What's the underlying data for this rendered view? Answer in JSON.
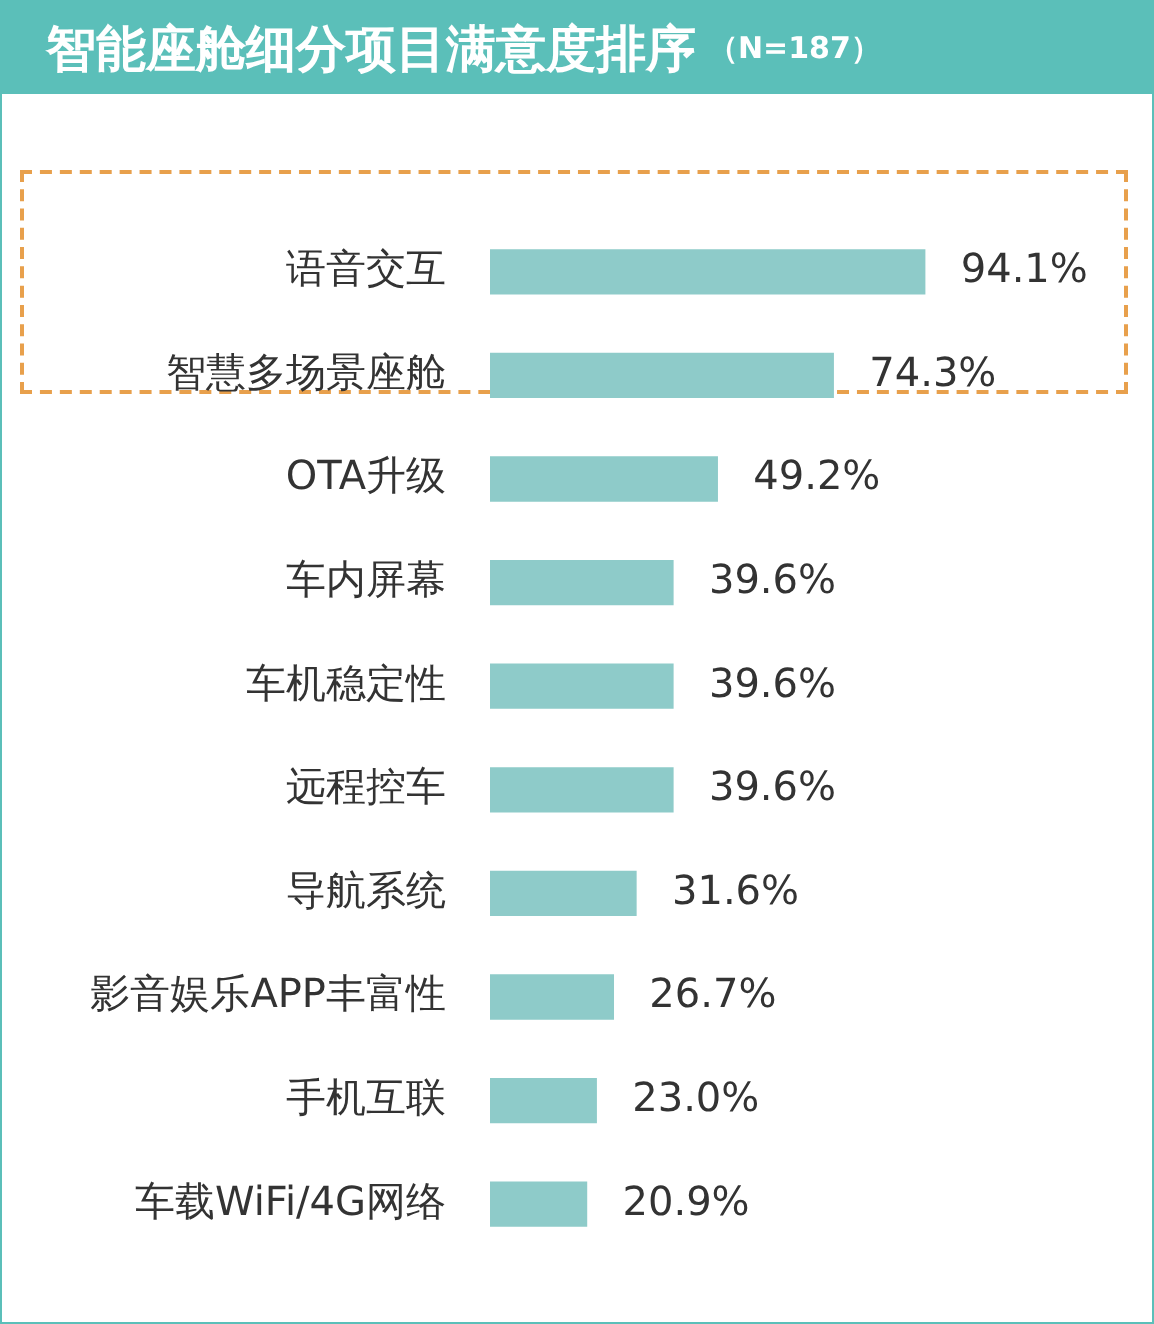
{
  "chart_data": {
    "type": "bar",
    "orientation": "horizontal",
    "title": "智能座舱细分项目满意度排序",
    "subtitle": "（N=187）",
    "categories": [
      "语音交互",
      "智慧多场景座舱",
      "OTA升级",
      "车内屏幕",
      "车机稳定性",
      "远程控车",
      "导航系统",
      "影音娱乐APP丰富性",
      "手机互联",
      "车载WiFi/4G网络"
    ],
    "values": [
      94.1,
      74.3,
      49.2,
      39.6,
      39.6,
      39.6,
      31.6,
      26.7,
      23.0,
      20.9
    ],
    "value_labels": [
      "94.1%",
      "74.3%",
      "49.2%",
      "39.6%",
      "39.6%",
      "39.6%",
      "31.6%",
      "26.7%",
      "23.0%",
      "20.9%"
    ],
    "color": "#8ecbc9",
    "grid": false,
    "legend": false
  }
}
